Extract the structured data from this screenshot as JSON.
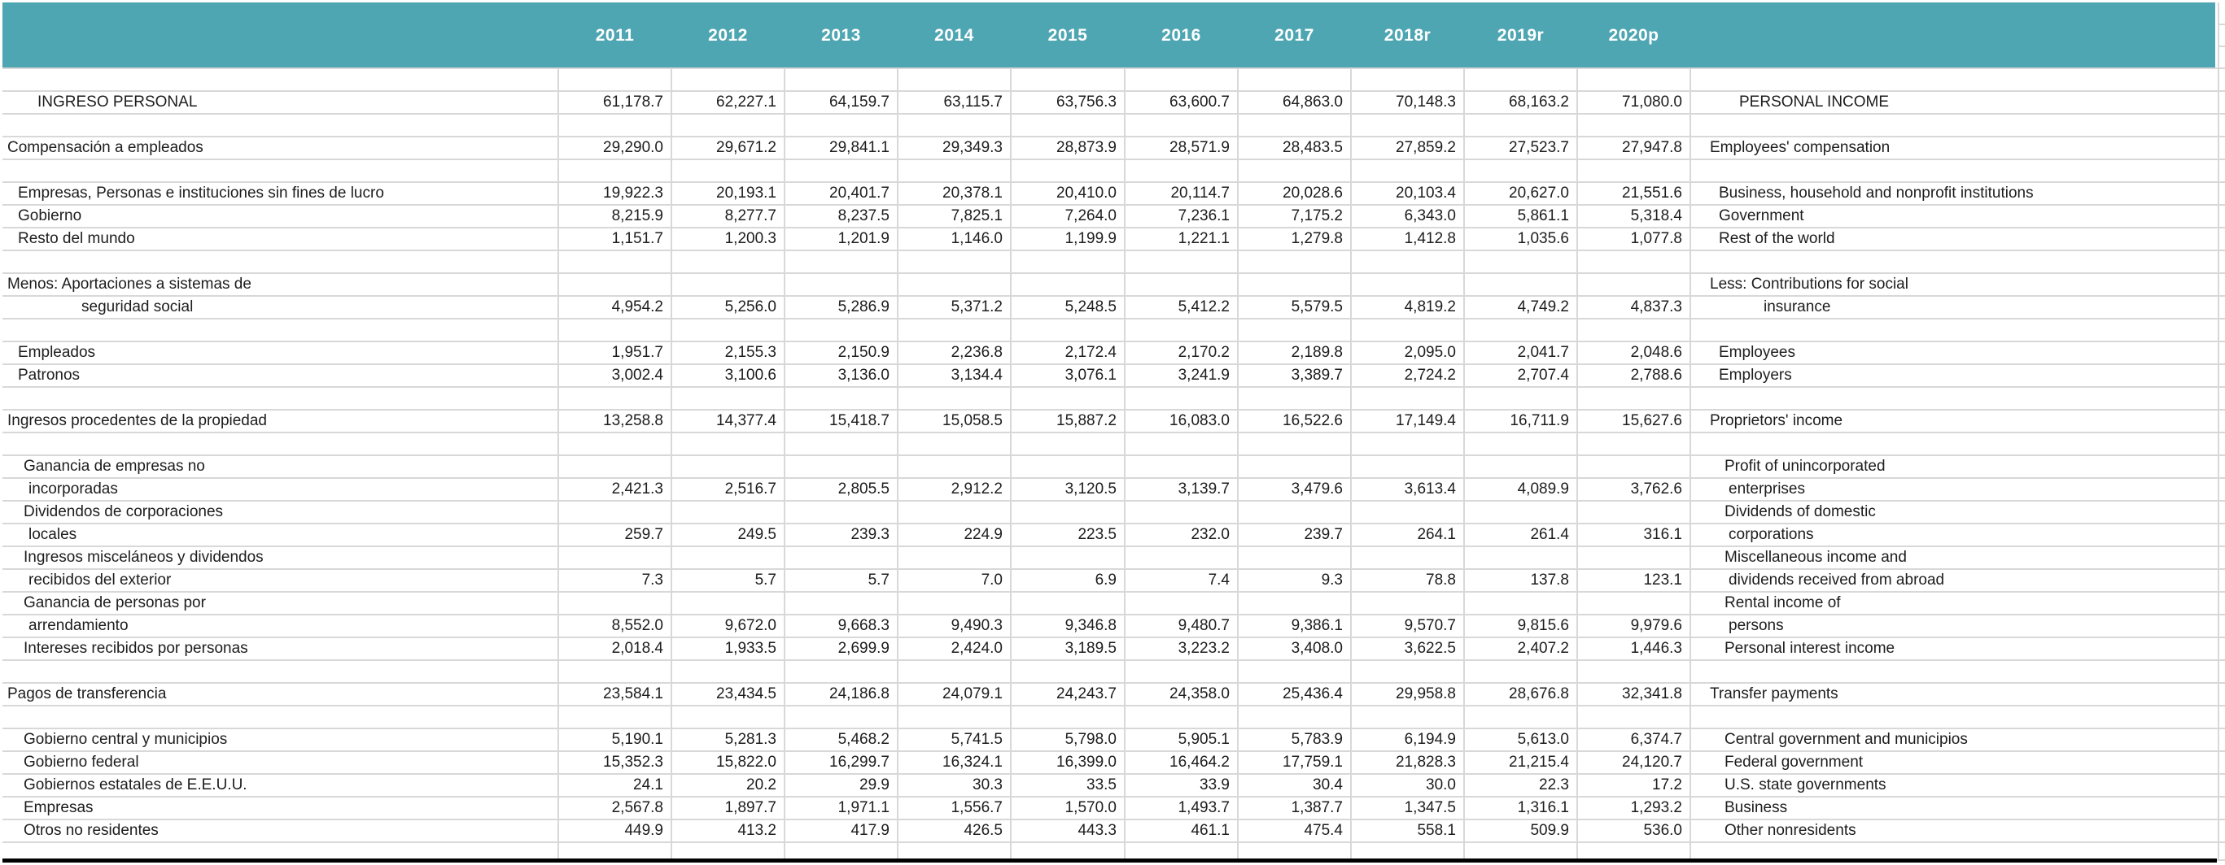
{
  "table": {
    "title_es": "INGRESO PERSONAL",
    "title_en": "PERSONAL INCOME",
    "header": {
      "years": [
        "2011",
        "2012",
        "2013",
        "2014",
        "2015",
        "2016",
        "2017",
        "2018r",
        "2019r",
        "2020p"
      ],
      "band_color": "#4ea6b2",
      "text_color": "#ffffff"
    },
    "colors": {
      "gridline": "#d8d8d8",
      "text": "#1d1d1d",
      "bottom_rule": "#000000",
      "background": "#ffffff"
    },
    "rows": [
      {
        "es": "",
        "en": "",
        "values": null
      },
      {
        "es": "INGRESO PERSONAL",
        "esl": "t",
        "en": "PERSONAL INCOME",
        "enl": "t",
        "values": [
          "61,178.7",
          "62,227.1",
          "64,159.7",
          "63,115.7",
          "63,756.3",
          "63,600.7",
          "64,863.0",
          "70,148.3",
          "68,163.2",
          "71,080.0"
        ]
      },
      {
        "es": "",
        "en": "",
        "values": null
      },
      {
        "es": "Compensación a empleados",
        "esl": "s",
        "en": "Employees' compensation",
        "enl": "s",
        "values": [
          "29,290.0",
          "29,671.2",
          "29,841.1",
          "29,349.3",
          "28,873.9",
          "28,571.9",
          "28,483.5",
          "27,859.2",
          "27,523.7",
          "27,947.8"
        ]
      },
      {
        "es": "",
        "en": "",
        "values": null
      },
      {
        "es": "Empresas, Personas e instituciones sin fines de lucro",
        "esl": "a",
        "en": "Business, household and nonprofit institutions",
        "enl": "a",
        "values": [
          "19,922.3",
          "20,193.1",
          "20,401.7",
          "20,378.1",
          "20,410.0",
          "20,114.7",
          "20,028.6",
          "20,103.4",
          "20,627.0",
          "21,551.6"
        ]
      },
      {
        "es": "Gobierno",
        "esl": "a",
        "en": "Government",
        "enl": "a",
        "values": [
          "8,215.9",
          "8,277.7",
          "8,237.5",
          "7,825.1",
          "7,264.0",
          "7,236.1",
          "7,175.2",
          "6,343.0",
          "5,861.1",
          "5,318.4"
        ]
      },
      {
        "es": "Resto del mundo",
        "esl": "a",
        "en": "Rest of the world",
        "enl": "a",
        "values": [
          "1,151.7",
          "1,200.3",
          "1,201.9",
          "1,146.0",
          "1,199.9",
          "1,221.1",
          "1,279.8",
          "1,412.8",
          "1,035.6",
          "1,077.8"
        ]
      },
      {
        "es": "",
        "en": "",
        "values": null
      },
      {
        "es": "Menos: Aportaciones a sistemas de",
        "esl": "s",
        "en": "Less: Contributions for social",
        "enl": "s",
        "values": null
      },
      {
        "es": "seguridad social",
        "esl": "d",
        "en": "insurance",
        "enl": "d",
        "values": [
          "4,954.2",
          "5,256.0",
          "5,286.9",
          "5,371.2",
          "5,248.5",
          "5,412.2",
          "5,579.5",
          "4,819.2",
          "4,749.2",
          "4,837.3"
        ]
      },
      {
        "es": "",
        "en": "",
        "values": null
      },
      {
        "es": "Empleados",
        "esl": "a",
        "en": "Employees",
        "enl": "a",
        "values": [
          "1,951.7",
          "2,155.3",
          "2,150.9",
          "2,236.8",
          "2,172.4",
          "2,170.2",
          "2,189.8",
          "2,095.0",
          "2,041.7",
          "2,048.6"
        ]
      },
      {
        "es": "Patronos",
        "esl": "a",
        "en": "Employers",
        "enl": "a",
        "values": [
          "3,002.4",
          "3,100.6",
          "3,136.0",
          "3,134.4",
          "3,076.1",
          "3,241.9",
          "3,389.7",
          "2,724.2",
          "2,707.4",
          "2,788.6"
        ]
      },
      {
        "es": "",
        "en": "",
        "values": null
      },
      {
        "es": "Ingresos procedentes de la propiedad",
        "esl": "s",
        "en": "Proprietors' income",
        "enl": "s",
        "values": [
          "13,258.8",
          "14,377.4",
          "15,418.7",
          "15,058.5",
          "15,887.2",
          "16,083.0",
          "16,522.6",
          "17,149.4",
          "16,711.9",
          "15,627.6"
        ]
      },
      {
        "es": "",
        "en": "",
        "values": null
      },
      {
        "es": "Ganancia de empresas no",
        "esl": "b",
        "en": "Profit of unincorporated",
        "enl": "b",
        "values": null
      },
      {
        "es": "incorporadas",
        "esl": "c",
        "en": "enterprises",
        "enl": "c",
        "values": [
          "2,421.3",
          "2,516.7",
          "2,805.5",
          "2,912.2",
          "3,120.5",
          "3,139.7",
          "3,479.6",
          "3,613.4",
          "4,089.9",
          "3,762.6"
        ]
      },
      {
        "es": "Dividendos de corporaciones",
        "esl": "b",
        "en": "Dividends of domestic",
        "enl": "b",
        "values": null
      },
      {
        "es": "locales",
        "esl": "c",
        "en": "corporations",
        "enl": "c",
        "values": [
          "259.7",
          "249.5",
          "239.3",
          "224.9",
          "223.5",
          "232.0",
          "239.7",
          "264.1",
          "261.4",
          "316.1"
        ]
      },
      {
        "es": "Ingresos misceláneos y dividendos",
        "esl": "b",
        "en": "Miscellaneous income and",
        "enl": "b",
        "values": null
      },
      {
        "es": "recibidos del exterior",
        "esl": "c",
        "en": "dividends received from abroad",
        "enl": "c",
        "values": [
          "7.3",
          "5.7",
          "5.7",
          "7.0",
          "6.9",
          "7.4",
          "9.3",
          "78.8",
          "137.8",
          "123.1"
        ]
      },
      {
        "es": "Ganancia de personas por",
        "esl": "b",
        "en": "Rental income of",
        "enl": "b",
        "values": null
      },
      {
        "es": "arrendamiento",
        "esl": "c",
        "en": "persons",
        "enl": "c",
        "values": [
          "8,552.0",
          "9,672.0",
          "9,668.3",
          "9,490.3",
          "9,346.8",
          "9,480.7",
          "9,386.1",
          "9,570.7",
          "9,815.6",
          "9,979.6"
        ]
      },
      {
        "es": "Intereses recibidos por personas",
        "esl": "b",
        "en": "Personal interest income",
        "enl": "b",
        "values": [
          "2,018.4",
          "1,933.5",
          "2,699.9",
          "2,424.0",
          "3,189.5",
          "3,223.2",
          "3,408.0",
          "3,622.5",
          "2,407.2",
          "1,446.3"
        ]
      },
      {
        "es": "",
        "en": "",
        "values": null
      },
      {
        "es": "Pagos de transferencia",
        "esl": "s",
        "en": "Transfer payments",
        "enl": "s",
        "values": [
          "23,584.1",
          "23,434.5",
          "24,186.8",
          "24,079.1",
          "24,243.7",
          "24,358.0",
          "25,436.4",
          "29,958.8",
          "28,676.8",
          "32,341.8"
        ]
      },
      {
        "es": "",
        "en": "",
        "values": null
      },
      {
        "es": "Gobierno central y municipios",
        "esl": "b",
        "en": "Central government and municipios",
        "enl": "b",
        "values": [
          "5,190.1",
          "5,281.3",
          "5,468.2",
          "5,741.5",
          "5,798.0",
          "5,905.1",
          "5,783.9",
          "6,194.9",
          "5,613.0",
          "6,374.7"
        ]
      },
      {
        "es": "Gobierno federal",
        "esl": "b",
        "en": "Federal government",
        "enl": "b",
        "values": [
          "15,352.3",
          "15,822.0",
          "16,299.7",
          "16,324.1",
          "16,399.0",
          "16,464.2",
          "17,759.1",
          "21,828.3",
          "21,215.4",
          "24,120.7"
        ]
      },
      {
        "es": "Gobiernos estatales de E.E.U.U.",
        "esl": "b",
        "en": "U.S. state governments",
        "enl": "b",
        "values": [
          "24.1",
          "20.2",
          "29.9",
          "30.3",
          "33.5",
          "33.9",
          "30.4",
          "30.0",
          "22.3",
          "17.2"
        ]
      },
      {
        "es": "Empresas",
        "esl": "b",
        "en": "Business",
        "enl": "b",
        "values": [
          "2,567.8",
          "1,897.7",
          "1,971.1",
          "1,556.7",
          "1,570.0",
          "1,493.7",
          "1,387.7",
          "1,347.5",
          "1,316.1",
          "1,293.2"
        ]
      },
      {
        "es": "Otros no residentes",
        "esl": "b",
        "en": "Other nonresidents",
        "enl": "b",
        "values": [
          "449.9",
          "413.2",
          "417.9",
          "426.5",
          "443.3",
          "461.1",
          "475.4",
          "558.1",
          "509.9",
          "536.0"
        ]
      },
      {
        "es": "",
        "en": "",
        "values": null
      }
    ]
  }
}
